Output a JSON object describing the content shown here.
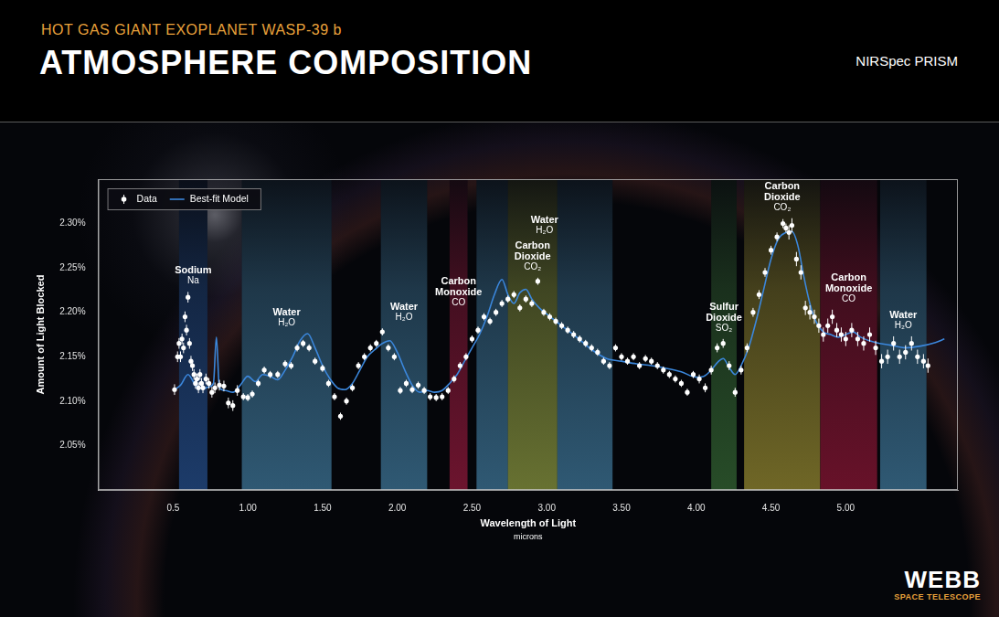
{
  "chart_data": {
    "type": "scatter",
    "title": "ATMOSPHERE COMPOSITION",
    "subtitle": "HOT GAS GIANT EXOPLANET WASP-39 b",
    "corner_label": "NIRSpec PRISM",
    "logo": {
      "text": "WEBB",
      "subtext": "SPACE TELESCOPE"
    },
    "x_label": "Wavelength of Light",
    "x_sublabel": "microns",
    "y_label": "Amount of Light Blocked",
    "xlim": [
      0,
      5.75
    ],
    "xticks": [
      0.5,
      {
        "value": 1,
        "label": "1.00"
      },
      {
        "value": 1.5,
        "label": "1.50"
      },
      {
        "value": 2,
        "label": "2.00"
      },
      {
        "value": 2.5,
        "label": "2.50"
      },
      {
        "value": 3,
        "label": "3.00"
      },
      {
        "value": 3.5,
        "label": "3.50"
      },
      {
        "value": 4,
        "label": "4.00"
      },
      {
        "value": 4.5,
        "label": "4.50"
      },
      {
        "value": 5,
        "label": "5.00"
      }
    ],
    "ylim": [
      2.0,
      2.35
    ],
    "yticks": [
      {
        "value": 2.05,
        "label": "2.05%"
      },
      {
        "value": 2.1,
        "label": "2.10%"
      },
      {
        "value": 2.15,
        "label": "2.15%"
      },
      {
        "value": 2.2,
        "label": "2.20%"
      },
      {
        "value": 2.25,
        "label": "2.25%"
      },
      {
        "value": 2.3,
        "label": "2.30%"
      }
    ],
    "grid": false,
    "legend": "upper left",
    "series": [
      {
        "name": "Data",
        "type": "scatter",
        "color": "#ffffff",
        "marker": "circle",
        "x": [
          0.51,
          0.53,
          0.54,
          0.55,
          0.56,
          0.57,
          0.58,
          0.59,
          0.6,
          0.61,
          0.62,
          0.63,
          0.64,
          0.65,
          0.66,
          0.67,
          0.68,
          0.69,
          0.7,
          0.72,
          0.74,
          0.76,
          0.78,
          0.81,
          0.84,
          0.87,
          0.9,
          0.93,
          0.97,
          1.0,
          1.03,
          1.07,
          1.11,
          1.15,
          1.2,
          1.25,
          1.29,
          1.33,
          1.37,
          1.41,
          1.45,
          1.5,
          1.54,
          1.58,
          1.62,
          1.66,
          1.7,
          1.74,
          1.78,
          1.82,
          1.86,
          1.9,
          1.94,
          1.98,
          2.02,
          2.06,
          2.1,
          2.14,
          2.18,
          2.22,
          2.26,
          2.3,
          2.34,
          2.38,
          2.42,
          2.46,
          2.5,
          2.54,
          2.58,
          2.62,
          2.66,
          2.7,
          2.74,
          2.78,
          2.82,
          2.86,
          2.9,
          2.94,
          2.98,
          3.02,
          3.06,
          3.1,
          3.14,
          3.18,
          3.22,
          3.26,
          3.3,
          3.34,
          3.38,
          3.42,
          3.46,
          3.5,
          3.54,
          3.58,
          3.62,
          3.66,
          3.7,
          3.74,
          3.78,
          3.82,
          3.86,
          3.9,
          3.94,
          3.98,
          4.02,
          4.06,
          4.1,
          4.14,
          4.18,
          4.22,
          4.26,
          4.3,
          4.34,
          4.38,
          4.42,
          4.46,
          4.5,
          4.54,
          4.58,
          4.6,
          4.62,
          4.64,
          4.67,
          4.7,
          4.73,
          4.76,
          4.79,
          4.82,
          4.85,
          4.88,
          4.91,
          4.94,
          4.97,
          5.0,
          5.04,
          5.08,
          5.12,
          5.16,
          5.2,
          5.24,
          5.28,
          5.32,
          5.36,
          5.4,
          5.44,
          5.48,
          5.52,
          5.55
        ],
        "values": [
          2.113,
          2.15,
          2.165,
          2.15,
          2.17,
          2.16,
          2.195,
          2.18,
          2.217,
          2.165,
          2.145,
          2.14,
          2.13,
          2.12,
          2.125,
          2.115,
          2.13,
          2.12,
          2.115,
          2.125,
          2.12,
          2.11,
          2.115,
          2.118,
          2.117,
          2.098,
          2.095,
          2.112,
          2.105,
          2.104,
          2.108,
          2.12,
          2.135,
          2.13,
          2.13,
          2.142,
          2.14,
          2.16,
          2.165,
          2.16,
          2.145,
          2.137,
          2.12,
          2.105,
          2.083,
          2.1,
          2.115,
          2.14,
          2.15,
          2.16,
          2.165,
          2.178,
          2.16,
          2.15,
          2.112,
          2.12,
          2.113,
          2.118,
          2.112,
          2.105,
          2.104,
          2.105,
          2.112,
          2.125,
          2.14,
          2.15,
          2.17,
          2.18,
          2.195,
          2.19,
          2.2,
          2.21,
          2.215,
          2.22,
          2.205,
          2.215,
          2.21,
          2.235,
          2.2,
          2.195,
          2.19,
          2.185,
          2.18,
          2.175,
          2.17,
          2.165,
          2.16,
          2.155,
          2.145,
          2.14,
          2.16,
          2.15,
          2.145,
          2.15,
          2.14,
          2.148,
          2.145,
          2.14,
          2.135,
          2.13,
          2.125,
          2.12,
          2.11,
          2.13,
          2.125,
          2.115,
          2.135,
          2.16,
          2.165,
          2.14,
          2.11,
          2.135,
          2.16,
          2.2,
          2.22,
          2.245,
          2.27,
          2.285,
          2.3,
          2.295,
          2.29,
          2.298,
          2.26,
          2.245,
          2.205,
          2.2,
          2.195,
          2.185,
          2.175,
          2.185,
          2.195,
          2.18,
          2.175,
          2.17,
          2.18,
          2.17,
          2.165,
          2.175,
          2.16,
          2.145,
          2.15,
          2.165,
          2.15,
          2.155,
          2.165,
          2.15,
          2.145,
          2.14
        ],
        "errors": [
          0.006,
          0.006,
          0.006,
          0.006,
          0.006,
          0.006,
          0.006,
          0.006,
          0.006,
          0.006,
          0.006,
          0.006,
          0.006,
          0.006,
          0.006,
          0.006,
          0.006,
          0.006,
          0.006,
          0.006,
          0.006,
          0.006,
          0.006,
          0.006,
          0.006,
          0.006,
          0.006,
          0.006,
          0.004,
          0.004,
          0.004,
          0.004,
          0.004,
          0.004,
          0.004,
          0.004,
          0.004,
          0.004,
          0.004,
          0.004,
          0.004,
          0.004,
          0.004,
          0.004,
          0.004,
          0.004,
          0.004,
          0.004,
          0.004,
          0.004,
          0.004,
          0.004,
          0.004,
          0.004,
          0.004,
          0.004,
          0.004,
          0.004,
          0.004,
          0.004,
          0.004,
          0.004,
          0.004,
          0.004,
          0.004,
          0.004,
          0.004,
          0.004,
          0.004,
          0.004,
          0.004,
          0.004,
          0.004,
          0.004,
          0.004,
          0.004,
          0.004,
          0.004,
          0.004,
          0.004,
          0.004,
          0.004,
          0.004,
          0.004,
          0.004,
          0.004,
          0.004,
          0.004,
          0.004,
          0.004,
          0.004,
          0.004,
          0.004,
          0.004,
          0.004,
          0.004,
          0.004,
          0.004,
          0.004,
          0.004,
          0.004,
          0.004,
          0.004,
          0.004,
          0.005,
          0.005,
          0.005,
          0.005,
          0.005,
          0.005,
          0.005,
          0.005,
          0.005,
          0.005,
          0.005,
          0.005,
          0.005,
          0.005,
          0.005,
          0.005,
          0.008,
          0.008,
          0.008,
          0.008,
          0.008,
          0.008,
          0.008,
          0.008,
          0.008,
          0.008,
          0.008,
          0.008,
          0.008,
          0.008,
          0.008,
          0.008,
          0.008,
          0.008,
          0.008,
          0.008,
          0.008,
          0.008,
          0.008,
          0.008,
          0.008,
          0.008,
          0.008,
          0.008
        ]
      },
      {
        "name": "Best-fit Model",
        "type": "line",
        "color": "#3b87dc",
        "line_style": "solid",
        "x": [
          0.5,
          0.55,
          0.6,
          0.65,
          0.7,
          0.74,
          0.77,
          0.79,
          0.81,
          0.85,
          0.9,
          0.95,
          1.0,
          1.05,
          1.1,
          1.15,
          1.2,
          1.25,
          1.3,
          1.35,
          1.4,
          1.45,
          1.5,
          1.55,
          1.6,
          1.65,
          1.7,
          1.75,
          1.8,
          1.85,
          1.9,
          1.95,
          2.0,
          2.05,
          2.1,
          2.15,
          2.2,
          2.25,
          2.3,
          2.35,
          2.4,
          2.45,
          2.5,
          2.55,
          2.6,
          2.65,
          2.7,
          2.74,
          2.78,
          2.82,
          2.86,
          2.9,
          2.95,
          3.0,
          3.1,
          3.2,
          3.3,
          3.4,
          3.5,
          3.6,
          3.7,
          3.8,
          3.9,
          4.0,
          4.05,
          4.1,
          4.15,
          4.18,
          4.22,
          4.26,
          4.3,
          4.35,
          4.4,
          4.45,
          4.5,
          4.55,
          4.6,
          4.64,
          4.68,
          4.72,
          4.76,
          4.8,
          4.85,
          4.9,
          4.95,
          5.0,
          5.05,
          5.1,
          5.2,
          5.3,
          5.4,
          5.5,
          5.6,
          5.66
        ],
        "values": [
          2.112,
          2.118,
          2.13,
          2.118,
          2.114,
          2.116,
          2.12,
          2.172,
          2.115,
          2.112,
          2.11,
          2.118,
          2.128,
          2.122,
          2.13,
          2.128,
          2.124,
          2.135,
          2.15,
          2.168,
          2.176,
          2.16,
          2.14,
          2.125,
          2.115,
          2.113,
          2.12,
          2.135,
          2.15,
          2.158,
          2.165,
          2.168,
          2.155,
          2.135,
          2.118,
          2.11,
          2.112,
          2.11,
          2.112,
          2.12,
          2.13,
          2.145,
          2.16,
          2.175,
          2.195,
          2.22,
          2.237,
          2.22,
          2.21,
          2.222,
          2.226,
          2.215,
          2.205,
          2.198,
          2.185,
          2.172,
          2.158,
          2.148,
          2.145,
          2.142,
          2.14,
          2.137,
          2.133,
          2.127,
          2.128,
          2.135,
          2.145,
          2.148,
          2.138,
          2.13,
          2.14,
          2.16,
          2.19,
          2.225,
          2.26,
          2.283,
          2.29,
          2.291,
          2.275,
          2.24,
          2.21,
          2.19,
          2.178,
          2.175,
          2.172,
          2.175,
          2.178,
          2.172,
          2.166,
          2.163,
          2.16,
          2.162,
          2.166,
          2.17
        ]
      }
    ],
    "bands": [
      {
        "name": "Sodium",
        "formula": "Na",
        "xrange": [
          0.54,
          0.73
        ],
        "color": "#2b5ea8"
      },
      {
        "name": "Water",
        "formula": "H₂O",
        "xrange": [
          0.96,
          1.56
        ],
        "color": "#4a8fb8"
      },
      {
        "name": "Water",
        "formula": "H₂O",
        "xrange": [
          1.89,
          2.2
        ],
        "color": "#4a8fb8"
      },
      {
        "name": "Carbon Monoxide",
        "formula": "CO",
        "xrange": [
          2.35,
          2.47
        ],
        "color": "#b01c44"
      },
      {
        "name": "Carbon Dioxide",
        "formula": "CO₂",
        "xrange": [
          2.74,
          3.07
        ],
        "color": "#a8b84a"
      },
      {
        "name": "Water",
        "formula": "H₂O",
        "xrange": [
          2.53,
          3.44
        ],
        "color": "#4a8fb8"
      },
      {
        "name": "Sulfur Dioxide",
        "formula": "SO₂",
        "xrange": [
          4.1,
          4.27
        ],
        "color": "#3d7a3a"
      },
      {
        "name": "Carbon Dioxide",
        "formula": "CO₂",
        "xrange": [
          4.32,
          4.83
        ],
        "color": "#b5a637"
      },
      {
        "name": "Carbon Monoxide",
        "formula": "CO",
        "xrange": [
          4.83,
          5.21
        ],
        "color": "#a8183c"
      },
      {
        "name": "Water",
        "formula": "H₂O",
        "xrange": [
          5.23,
          5.54
        ],
        "color": "#4a8fb8"
      }
    ]
  }
}
